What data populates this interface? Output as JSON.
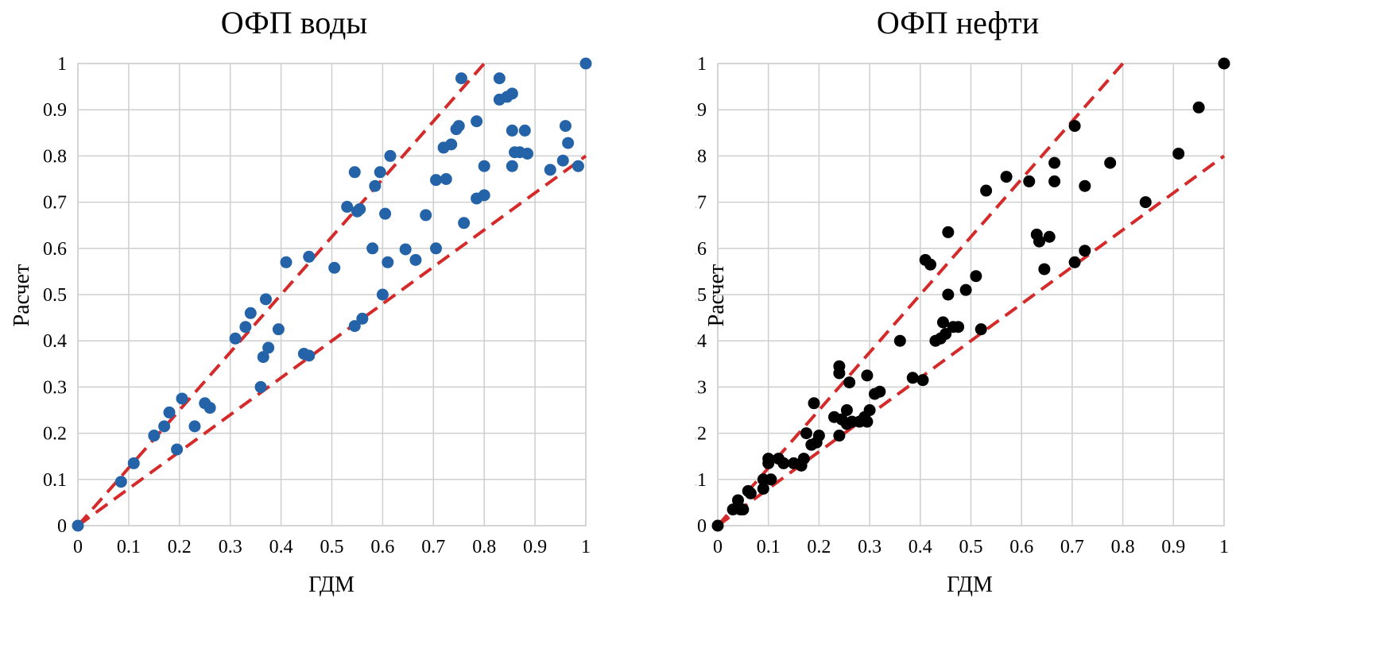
{
  "chart_data": [
    {
      "id": "left",
      "type": "scatter",
      "title": "ОФП воды",
      "xlabel": "ГДМ",
      "ylabel": "Расчет",
      "xlim": [
        0,
        1
      ],
      "ylim": [
        0,
        1
      ],
      "ticks": [
        "0",
        "0.1",
        "0.2",
        "0.3",
        "0.4",
        "0.5",
        "0.6",
        "0.7",
        "0.8",
        "0.9",
        "1"
      ],
      "grid": true,
      "point_color": "#2563a8",
      "line_color": "#d42a2a",
      "reference_lines": [
        {
          "name": "upper",
          "slope": 1.25
        },
        {
          "name": "lower",
          "slope": 0.8
        }
      ],
      "series": [
        {
          "name": "ОФП воды",
          "points": [
            [
              0,
              0
            ],
            [
              0.085,
              0.095
            ],
            [
              0.11,
              0.135
            ],
            [
              0.15,
              0.195
            ],
            [
              0.17,
              0.215
            ],
            [
              0.18,
              0.245
            ],
            [
              0.195,
              0.165
            ],
            [
              0.205,
              0.275
            ],
            [
              0.23,
              0.215
            ],
            [
              0.25,
              0.265
            ],
            [
              0.26,
              0.255
            ],
            [
              0.31,
              0.405
            ],
            [
              0.33,
              0.43
            ],
            [
              0.34,
              0.46
            ],
            [
              0.36,
              0.3
            ],
            [
              0.365,
              0.365
            ],
            [
              0.37,
              0.49
            ],
            [
              0.375,
              0.385
            ],
            [
              0.395,
              0.425
            ],
            [
              0.41,
              0.57
            ],
            [
              0.445,
              0.372
            ],
            [
              0.455,
              0.368
            ],
            [
              0.455,
              0.582
            ],
            [
              0.505,
              0.558
            ],
            [
              0.53,
              0.69
            ],
            [
              0.545,
              0.765
            ],
            [
              0.545,
              0.432
            ],
            [
              0.55,
              0.68
            ],
            [
              0.555,
              0.685
            ],
            [
              0.56,
              0.448
            ],
            [
              0.58,
              0.6
            ],
            [
              0.585,
              0.735
            ],
            [
              0.595,
              0.765
            ],
            [
              0.6,
              0.5
            ],
            [
              0.605,
              0.675
            ],
            [
              0.61,
              0.57
            ],
            [
              0.615,
              0.8
            ],
            [
              0.645,
              0.598
            ],
            [
              0.665,
              0.575
            ],
            [
              0.685,
              0.672
            ],
            [
              0.705,
              0.6
            ],
            [
              0.705,
              0.748
            ],
            [
              0.72,
              0.818
            ],
            [
              0.725,
              0.75
            ],
            [
              0.735,
              0.825
            ],
            [
              0.745,
              0.858
            ],
            [
              0.75,
              0.865
            ],
            [
              0.755,
              0.968
            ],
            [
              0.76,
              0.655
            ],
            [
              0.785,
              0.875
            ],
            [
              0.785,
              0.708
            ],
            [
              0.8,
              0.715
            ],
            [
              0.8,
              0.778
            ],
            [
              0.83,
              0.922
            ],
            [
              0.83,
              0.968
            ],
            [
              0.845,
              0.928
            ],
            [
              0.855,
              0.935
            ],
            [
              0.855,
              0.778
            ],
            [
              0.855,
              0.855
            ],
            [
              0.86,
              0.808
            ],
            [
              0.87,
              0.808
            ],
            [
              0.88,
              0.855
            ],
            [
              0.885,
              0.805
            ],
            [
              0.93,
              0.77
            ],
            [
              0.955,
              0.79
            ],
            [
              0.96,
              0.865
            ],
            [
              0.965,
              0.828
            ],
            [
              0.985,
              0.778
            ],
            [
              1.0,
              1.0
            ]
          ]
        }
      ]
    },
    {
      "id": "right",
      "type": "scatter",
      "title": "ОФП нефти",
      "xlabel": "ГДМ",
      "ylabel": "Расчет",
      "xlim": [
        0,
        1
      ],
      "ylim": [
        0,
        1
      ],
      "ticks": [
        "0",
        "0.1",
        "0.2",
        "0.3",
        "0.4",
        "0.5",
        "0.6",
        "0.7",
        "0.8",
        "0.9",
        "1"
      ],
      "grid": true,
      "point_color": "#000000",
      "line_color": "#d42a2a",
      "reference_lines": [
        {
          "name": "upper",
          "slope": 1.25
        },
        {
          "name": "lower",
          "slope": 0.8
        }
      ],
      "series": [
        {
          "name": "ОФП нефти",
          "points": [
            [
              0,
              0
            ],
            [
              0.03,
              0.035
            ],
            [
              0.04,
              0.055
            ],
            [
              0.045,
              0.035
            ],
            [
              0.05,
              0.035
            ],
            [
              0.06,
              0.075
            ],
            [
              0.065,
              0.07
            ],
            [
              0.09,
              0.1
            ],
            [
              0.09,
              0.08
            ],
            [
              0.1,
              0.145
            ],
            [
              0.1,
              0.135
            ],
            [
              0.105,
              0.1
            ],
            [
              0.12,
              0.145
            ],
            [
              0.13,
              0.135
            ],
            [
              0.15,
              0.135
            ],
            [
              0.165,
              0.13
            ],
            [
              0.17,
              0.145
            ],
            [
              0.175,
              0.2
            ],
            [
              0.185,
              0.175
            ],
            [
              0.19,
              0.265
            ],
            [
              0.195,
              0.18
            ],
            [
              0.2,
              0.195
            ],
            [
              0.23,
              0.235
            ],
            [
              0.24,
              0.33
            ],
            [
              0.24,
              0.345
            ],
            [
              0.24,
              0.195
            ],
            [
              0.245,
              0.23
            ],
            [
              0.255,
              0.25
            ],
            [
              0.255,
              0.22
            ],
            [
              0.26,
              0.31
            ],
            [
              0.265,
              0.225
            ],
            [
              0.28,
              0.225
            ],
            [
              0.29,
              0.235
            ],
            [
              0.295,
              0.225
            ],
            [
              0.295,
              0.325
            ],
            [
              0.3,
              0.25
            ],
            [
              0.31,
              0.285
            ],
            [
              0.32,
              0.29
            ],
            [
              0.36,
              0.4
            ],
            [
              0.385,
              0.32
            ],
            [
              0.405,
              0.315
            ],
            [
              0.41,
              0.575
            ],
            [
              0.42,
              0.565
            ],
            [
              0.43,
              0.4
            ],
            [
              0.44,
              0.405
            ],
            [
              0.445,
              0.44
            ],
            [
              0.45,
              0.415
            ],
            [
              0.455,
              0.5
            ],
            [
              0.455,
              0.635
            ],
            [
              0.465,
              0.43
            ],
            [
              0.475,
              0.43
            ],
            [
              0.49,
              0.51
            ],
            [
              0.51,
              0.54
            ],
            [
              0.52,
              0.425
            ],
            [
              0.53,
              0.725
            ],
            [
              0.57,
              0.755
            ],
            [
              0.615,
              0.745
            ],
            [
              0.63,
              0.63
            ],
            [
              0.635,
              0.615
            ],
            [
              0.645,
              0.555
            ],
            [
              0.655,
              0.625
            ],
            [
              0.665,
              0.745
            ],
            [
              0.665,
              0.785
            ],
            [
              0.705,
              0.865
            ],
            [
              0.705,
              0.57
            ],
            [
              0.725,
              0.735
            ],
            [
              0.725,
              0.595
            ],
            [
              0.775,
              0.785
            ],
            [
              0.845,
              0.7
            ],
            [
              0.91,
              0.805
            ],
            [
              0.95,
              0.905
            ],
            [
              1.0,
              1.0
            ]
          ]
        }
      ]
    }
  ]
}
